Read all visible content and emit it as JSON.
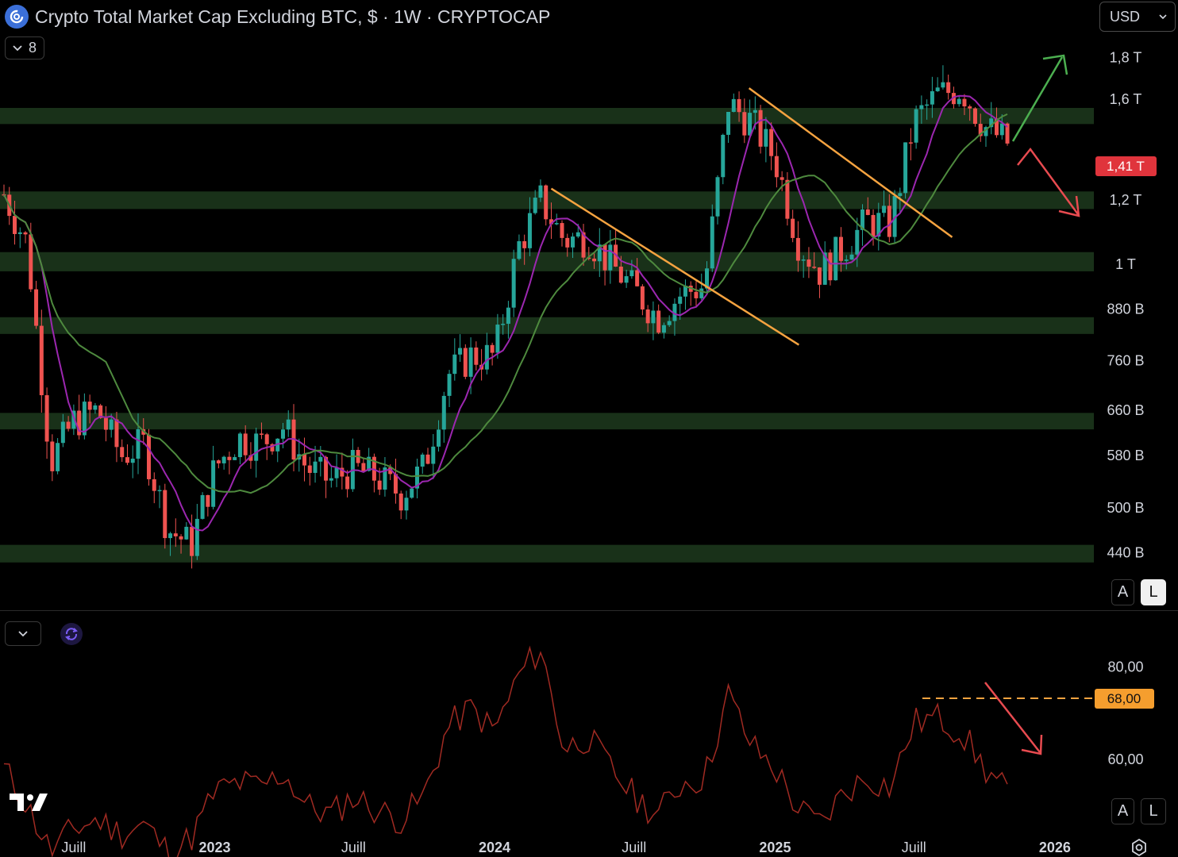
{
  "header": {
    "title": "Crypto Total Market Cap Excluding BTC, $ · 1W · CRYPTOCAP",
    "collapse_count": "8",
    "currency": "USD"
  },
  "axis_buttons": {
    "main_auto": "A",
    "main_log": "L",
    "rsi_auto": "A",
    "rsi_log": "L"
  },
  "icons": [
    "cryptocap-logo-icon",
    "chevron-down-icon",
    "sync-icon",
    "tradingview-logo-icon",
    "settings-icon"
  ],
  "colors": {
    "bull": "#26a69a",
    "bear": "#ef5350",
    "ma_fast": "#9c27b0",
    "ma_slow": "#4e8a3e",
    "zone": "#1d3a1d",
    "trendline": "#f5a340",
    "rsi_line": "#a02a22",
    "up_arrow": "#4caf50",
    "down_arrow": "#e84b50"
  },
  "chart_data": [
    {
      "type": "line",
      "subtype": "candlestick",
      "title": "Crypto Total Market Cap Excluding BTC, $ · 1W · CRYPTOCAP",
      "scale": "log",
      "y_tick_labels": [
        "1,8 T",
        "1,6 T",
        "1,2 T",
        "1 T",
        "880 B",
        "760 B",
        "660 B",
        "580 B",
        "500 B",
        "440 B"
      ],
      "x_tick_labels": [
        "Juill",
        "2023",
        "Juill",
        "2024",
        "Juill",
        "2025",
        "Juill",
        "2026"
      ],
      "bold_x_ticks": [
        "2023",
        "2024",
        "2025",
        "2026"
      ],
      "last_price_label": "1,41 T",
      "x_range": [
        "2022-04",
        "2025-11"
      ],
      "ylim": [
        390,
        2050
      ],
      "series": [
        {
          "name": "close",
          "x": [
            "2022-04",
            "2022-05",
            "2022-06",
            "2022-07",
            "2022-08",
            "2022-09",
            "2022-10",
            "2022-11",
            "2022-12",
            "2023-01",
            "2023-02",
            "2023-03",
            "2023-04",
            "2023-05",
            "2023-06",
            "2023-07",
            "2023-08",
            "2023-09",
            "2023-10",
            "2023-11",
            "2023-12",
            "2024-01",
            "2024-02",
            "2024-03",
            "2024-04",
            "2024-05",
            "2024-06",
            "2024-07",
            "2024-08",
            "2024-09",
            "2024-10",
            "2024-11",
            "2024-12",
            "2025-01",
            "2025-02",
            "2025-03",
            "2025-04",
            "2025-05",
            "2025-06",
            "2025-07",
            "2025-08",
            "2025-09",
            "2025-10",
            "2025-11"
          ],
          "values": [
            1220,
            1060,
            570,
            640,
            660,
            580,
            600,
            470,
            450,
            560,
            610,
            600,
            630,
            560,
            540,
            560,
            545,
            520,
            560,
            730,
            770,
            770,
            1050,
            1200,
            1070,
            1080,
            1000,
            930,
            860,
            920,
            940,
            1580,
            1500,
            1350,
            1060,
            980,
            1050,
            1130,
            1120,
            1500,
            1620,
            1650,
            1480,
            1410
          ]
        }
      ],
      "zones": [
        [
          1490,
          1560
        ],
        [
          1170,
          1230
        ],
        [
          980,
          1035
        ],
        [
          820,
          860
        ],
        [
          625,
          655
        ],
        [
          428,
          450
        ]
      ],
      "trendlines": [
        {
          "from": [
            "2024-03-15",
            1240
          ],
          "to": [
            "2025-02-01",
            795
          ]
        },
        {
          "from": [
            "2024-11-28",
            1650
          ],
          "to": [
            "2025-08-20",
            1080
          ]
        }
      ],
      "scenario_arrows": [
        "up",
        "down"
      ]
    },
    {
      "type": "line",
      "subtype": "rsi",
      "y_tick_labels": [
        "80,00",
        "60,00"
      ],
      "level_label": "68,00",
      "level": 68,
      "ylim": [
        42,
        90
      ],
      "series": [
        {
          "name": "rsi",
          "x": [
            "2022-04",
            "2022-05",
            "2022-06",
            "2022-07",
            "2022-08",
            "2022-09",
            "2022-10",
            "2022-11",
            "2022-12",
            "2023-01",
            "2023-02",
            "2023-03",
            "2023-04",
            "2023-05",
            "2023-06",
            "2023-07",
            "2023-08",
            "2023-09",
            "2023-10",
            "2023-11",
            "2023-12",
            "2024-01",
            "2024-02",
            "2024-03",
            "2024-04",
            "2024-05",
            "2024-06",
            "2024-07",
            "2024-08",
            "2024-09",
            "2024-10",
            "2024-11",
            "2024-12",
            "2025-01",
            "2025-02",
            "2025-03",
            "2025-04",
            "2025-05",
            "2025-06",
            "2025-07",
            "2025-08",
            "2025-09",
            "2025-10",
            "2025-11"
          ],
          "values": [
            58,
            50,
            40,
            45,
            47,
            44,
            46,
            40,
            43,
            53,
            55,
            54,
            57,
            50,
            48,
            52,
            49,
            47,
            52,
            67,
            71,
            66,
            78,
            84,
            62,
            65,
            58,
            52,
            48,
            55,
            56,
            74,
            63,
            58,
            49,
            46,
            53,
            56,
            54,
            68,
            69,
            66,
            58,
            53
          ]
        }
      ]
    }
  ]
}
